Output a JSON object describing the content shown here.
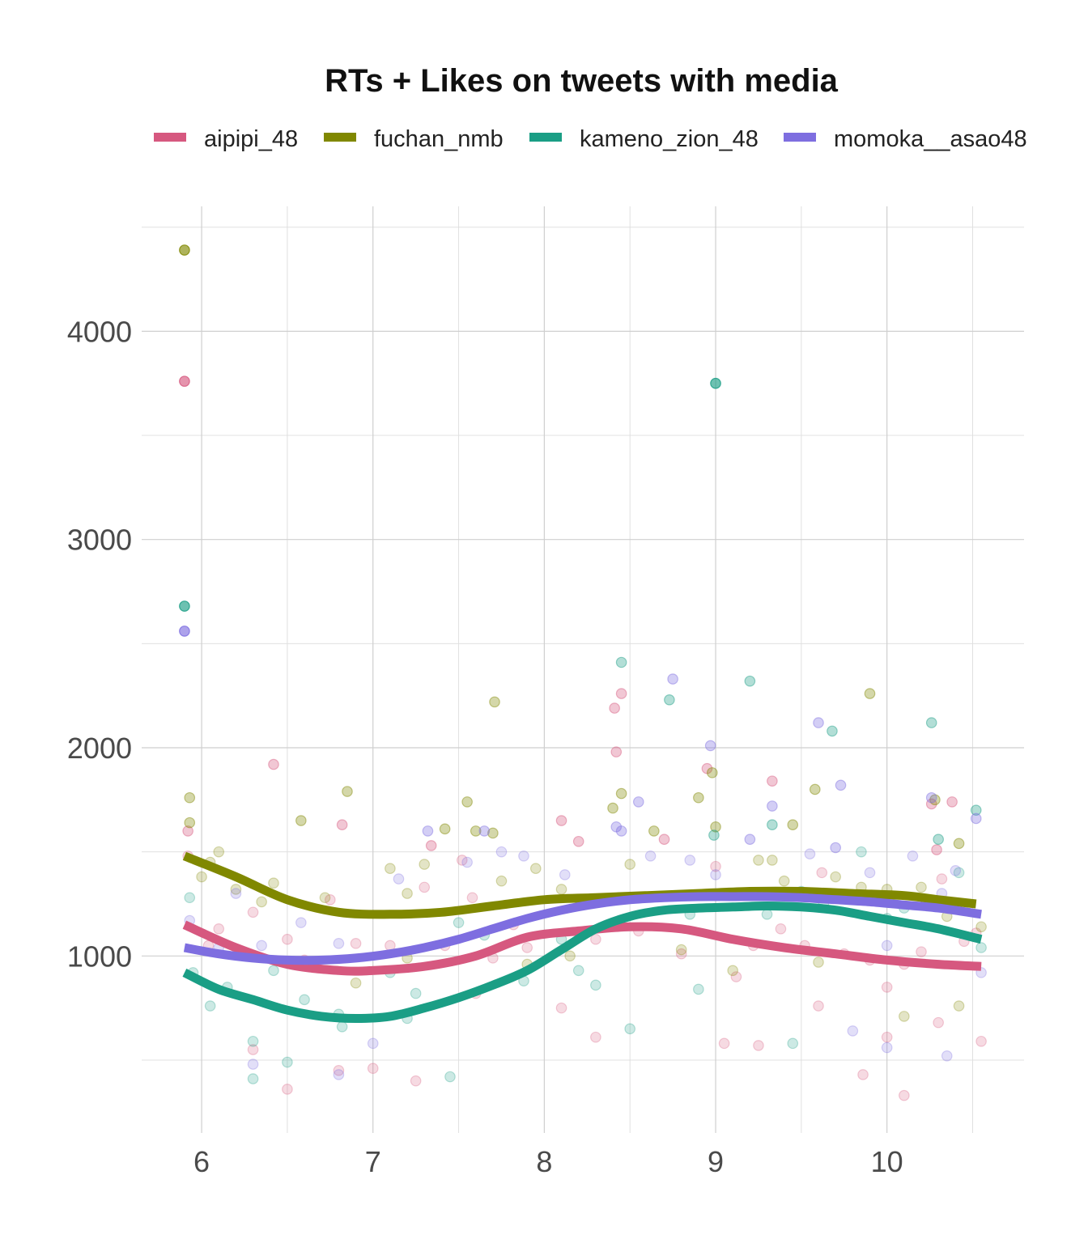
{
  "chart_data": {
    "type": "scatter",
    "title": "RTs + Likes on tweets with media",
    "xlabel": "",
    "ylabel": "",
    "xlim": [
      5.65,
      10.8
    ],
    "ylim": [
      150,
      4600
    ],
    "x_ticks": [
      6,
      7,
      8,
      9,
      10
    ],
    "y_ticks": [
      1000,
      2000,
      3000,
      4000
    ],
    "x_minor": [
      6.5,
      7.5,
      8.5,
      9.5,
      10.5
    ],
    "y_minor": [
      500,
      1500,
      2500,
      3500,
      4500
    ],
    "grid": true,
    "legend_position": "top",
    "colors": {
      "aipipi_48": "#d6587f",
      "fuchan_nmb": "#808800",
      "kameno_zion_48": "#1a9e85",
      "momoka__asao48": "#7e6ee0"
    },
    "series": [
      {
        "name": "aipipi_48",
        "smooth": [
          [
            5.9,
            1150
          ],
          [
            6.2,
            1040
          ],
          [
            6.5,
            960
          ],
          [
            6.8,
            930
          ],
          [
            7.0,
            930
          ],
          [
            7.3,
            950
          ],
          [
            7.6,
            1000
          ],
          [
            7.9,
            1090
          ],
          [
            8.2,
            1120
          ],
          [
            8.5,
            1140
          ],
          [
            8.8,
            1130
          ],
          [
            9.1,
            1080
          ],
          [
            9.4,
            1040
          ],
          [
            9.7,
            1010
          ],
          [
            10.0,
            980
          ],
          [
            10.3,
            960
          ],
          [
            10.55,
            950
          ]
        ],
        "points": [
          [
            5.9,
            3760
          ],
          [
            5.92,
            1600
          ],
          [
            5.92,
            1480
          ],
          [
            6.04,
            1050
          ],
          [
            6.1,
            1130
          ],
          [
            6.22,
            1010
          ],
          [
            6.3,
            1210
          ],
          [
            6.42,
            1920
          ],
          [
            6.5,
            1080
          ],
          [
            6.6,
            980
          ],
          [
            6.75,
            1270
          ],
          [
            6.82,
            1630
          ],
          [
            6.9,
            1060
          ],
          [
            7.1,
            1050
          ],
          [
            7.3,
            1330
          ],
          [
            7.34,
            1530
          ],
          [
            7.42,
            1050
          ],
          [
            7.52,
            1460
          ],
          [
            7.58,
            1280
          ],
          [
            7.7,
            990
          ],
          [
            7.82,
            1150
          ],
          [
            7.9,
            1040
          ],
          [
            8.1,
            1650
          ],
          [
            8.2,
            1550
          ],
          [
            8.3,
            1080
          ],
          [
            8.41,
            2190
          ],
          [
            8.42,
            1980
          ],
          [
            8.45,
            2260
          ],
          [
            8.55,
            1120
          ],
          [
            8.7,
            1560
          ],
          [
            8.8,
            1010
          ],
          [
            8.95,
            1900
          ],
          [
            9.0,
            1430
          ],
          [
            9.12,
            900
          ],
          [
            9.22,
            1050
          ],
          [
            9.33,
            1840
          ],
          [
            9.38,
            1130
          ],
          [
            9.52,
            1050
          ],
          [
            9.62,
            1400
          ],
          [
            9.75,
            1010
          ],
          [
            9.9,
            980
          ],
          [
            10.0,
            850
          ],
          [
            10.1,
            960
          ],
          [
            10.2,
            1020
          ],
          [
            10.26,
            1730
          ],
          [
            10.29,
            1510
          ],
          [
            10.32,
            1370
          ],
          [
            10.38,
            1740
          ],
          [
            10.45,
            1070
          ],
          [
            10.52,
            1110
          ],
          [
            6.3,
            550
          ],
          [
            6.5,
            360
          ],
          [
            6.8,
            450
          ],
          [
            7.0,
            460
          ],
          [
            7.25,
            400
          ],
          [
            7.6,
            820
          ],
          [
            8.1,
            750
          ],
          [
            8.3,
            610
          ],
          [
            9.05,
            580
          ],
          [
            9.25,
            570
          ],
          [
            9.6,
            760
          ],
          [
            9.86,
            430
          ],
          [
            10.0,
            610
          ],
          [
            10.1,
            330
          ],
          [
            10.3,
            680
          ],
          [
            10.55,
            590
          ]
        ]
      },
      {
        "name": "fuchan_nmb",
        "smooth": [
          [
            5.9,
            1480
          ],
          [
            6.2,
            1380
          ],
          [
            6.5,
            1270
          ],
          [
            6.8,
            1210
          ],
          [
            7.1,
            1200
          ],
          [
            7.4,
            1210
          ],
          [
            7.7,
            1240
          ],
          [
            8.0,
            1270
          ],
          [
            8.3,
            1280
          ],
          [
            8.6,
            1290
          ],
          [
            8.9,
            1300
          ],
          [
            9.2,
            1310
          ],
          [
            9.5,
            1310
          ],
          [
            9.8,
            1300
          ],
          [
            10.1,
            1290
          ],
          [
            10.3,
            1270
          ],
          [
            10.52,
            1250
          ]
        ],
        "points": [
          [
            5.9,
            4390
          ],
          [
            5.93,
            1760
          ],
          [
            5.93,
            1640
          ],
          [
            6.0,
            1380
          ],
          [
            6.05,
            1450
          ],
          [
            6.1,
            1500
          ],
          [
            6.2,
            1320
          ],
          [
            6.35,
            1260
          ],
          [
            6.42,
            1350
          ],
          [
            6.58,
            1650
          ],
          [
            6.72,
            1280
          ],
          [
            6.85,
            1790
          ],
          [
            7.1,
            1420
          ],
          [
            7.2,
            1300
          ],
          [
            7.3,
            1440
          ],
          [
            7.42,
            1610
          ],
          [
            7.55,
            1740
          ],
          [
            7.6,
            1600
          ],
          [
            7.7,
            1590
          ],
          [
            7.71,
            2220
          ],
          [
            7.75,
            1360
          ],
          [
            7.95,
            1420
          ],
          [
            8.1,
            1320
          ],
          [
            8.4,
            1710
          ],
          [
            8.45,
            1780
          ],
          [
            8.5,
            1440
          ],
          [
            8.64,
            1600
          ],
          [
            8.9,
            1760
          ],
          [
            8.98,
            1880
          ],
          [
            9.0,
            1620
          ],
          [
            9.25,
            1460
          ],
          [
            9.33,
            1460
          ],
          [
            9.4,
            1360
          ],
          [
            9.45,
            1630
          ],
          [
            9.58,
            1800
          ],
          [
            9.7,
            1380
          ],
          [
            9.85,
            1330
          ],
          [
            9.9,
            2260
          ],
          [
            10.0,
            1320
          ],
          [
            10.2,
            1330
          ],
          [
            10.28,
            1750
          ],
          [
            10.35,
            1190
          ],
          [
            10.42,
            1540
          ],
          [
            10.55,
            1140
          ],
          [
            6.9,
            870
          ],
          [
            7.2,
            990
          ],
          [
            7.9,
            960
          ],
          [
            8.15,
            1000
          ],
          [
            8.8,
            1030
          ],
          [
            9.1,
            930
          ],
          [
            9.6,
            970
          ],
          [
            10.1,
            710
          ],
          [
            10.42,
            760
          ]
        ]
      },
      {
        "name": "kameno_zion_48",
        "smooth": [
          [
            5.9,
            920
          ],
          [
            6.1,
            840
          ],
          [
            6.3,
            790
          ],
          [
            6.5,
            740
          ],
          [
            6.7,
            710
          ],
          [
            6.9,
            700
          ],
          [
            7.1,
            710
          ],
          [
            7.3,
            750
          ],
          [
            7.5,
            800
          ],
          [
            7.7,
            860
          ],
          [
            7.9,
            930
          ],
          [
            8.1,
            1030
          ],
          [
            8.3,
            1130
          ],
          [
            8.5,
            1190
          ],
          [
            8.7,
            1220
          ],
          [
            8.9,
            1230
          ],
          [
            9.1,
            1235
          ],
          [
            9.3,
            1240
          ],
          [
            9.5,
            1235
          ],
          [
            9.7,
            1220
          ],
          [
            9.9,
            1190
          ],
          [
            10.1,
            1160
          ],
          [
            10.3,
            1130
          ],
          [
            10.55,
            1080
          ]
        ],
        "points": [
          [
            5.9,
            2680
          ],
          [
            5.93,
            1280
          ],
          [
            5.95,
            920
          ],
          [
            6.05,
            760
          ],
          [
            6.15,
            850
          ],
          [
            6.3,
            590
          ],
          [
            6.42,
            930
          ],
          [
            6.6,
            790
          ],
          [
            6.82,
            660
          ],
          [
            7.1,
            920
          ],
          [
            7.25,
            820
          ],
          [
            7.5,
            1160
          ],
          [
            7.65,
            1100
          ],
          [
            7.88,
            880
          ],
          [
            8.1,
            1080
          ],
          [
            8.2,
            930
          ],
          [
            8.3,
            860
          ],
          [
            8.45,
            2410
          ],
          [
            8.5,
            1280
          ],
          [
            8.73,
            2230
          ],
          [
            8.85,
            1200
          ],
          [
            8.99,
            1580
          ],
          [
            9.0,
            3750
          ],
          [
            9.2,
            2320
          ],
          [
            9.3,
            1200
          ],
          [
            9.33,
            1630
          ],
          [
            9.5,
            1310
          ],
          [
            9.63,
            1250
          ],
          [
            9.68,
            2080
          ],
          [
            9.85,
            1500
          ],
          [
            10.0,
            1180
          ],
          [
            10.1,
            1230
          ],
          [
            10.26,
            2120
          ],
          [
            10.3,
            1560
          ],
          [
            10.42,
            1400
          ],
          [
            10.52,
            1700
          ],
          [
            10.55,
            1040
          ],
          [
            6.3,
            410
          ],
          [
            6.5,
            490
          ],
          [
            7.45,
            420
          ],
          [
            8.5,
            650
          ],
          [
            9.45,
            580
          ],
          [
            6.8,
            720
          ],
          [
            7.2,
            700
          ],
          [
            8.9,
            840
          ]
        ]
      },
      {
        "name": "momoka__asao48",
        "smooth": [
          [
            5.9,
            1040
          ],
          [
            6.1,
            1010
          ],
          [
            6.3,
            990
          ],
          [
            6.5,
            980
          ],
          [
            6.7,
            980
          ],
          [
            6.9,
            990
          ],
          [
            7.1,
            1010
          ],
          [
            7.3,
            1040
          ],
          [
            7.5,
            1080
          ],
          [
            7.7,
            1130
          ],
          [
            7.9,
            1180
          ],
          [
            8.1,
            1220
          ],
          [
            8.3,
            1250
          ],
          [
            8.5,
            1270
          ],
          [
            8.7,
            1280
          ],
          [
            8.9,
            1285
          ],
          [
            9.1,
            1285
          ],
          [
            9.3,
            1285
          ],
          [
            9.5,
            1280
          ],
          [
            9.7,
            1270
          ],
          [
            9.9,
            1260
          ],
          [
            10.1,
            1245
          ],
          [
            10.3,
            1230
          ],
          [
            10.55,
            1200
          ]
        ],
        "points": [
          [
            5.9,
            2560
          ],
          [
            5.93,
            1170
          ],
          [
            6.1,
            1040
          ],
          [
            6.2,
            1300
          ],
          [
            6.35,
            1050
          ],
          [
            6.58,
            1160
          ],
          [
            6.8,
            1060
          ],
          [
            7.15,
            1370
          ],
          [
            7.32,
            1600
          ],
          [
            7.55,
            1450
          ],
          [
            7.65,
            1600
          ],
          [
            7.75,
            1500
          ],
          [
            7.88,
            1480
          ],
          [
            8.12,
            1390
          ],
          [
            8.42,
            1620
          ],
          [
            8.45,
            1600
          ],
          [
            8.55,
            1740
          ],
          [
            8.62,
            1480
          ],
          [
            8.75,
            2330
          ],
          [
            8.85,
            1460
          ],
          [
            8.97,
            2010
          ],
          [
            9.0,
            1390
          ],
          [
            9.2,
            1560
          ],
          [
            9.33,
            1720
          ],
          [
            9.55,
            1490
          ],
          [
            9.6,
            2120
          ],
          [
            9.7,
            1520
          ],
          [
            9.73,
            1820
          ],
          [
            9.9,
            1400
          ],
          [
            10.0,
            1050
          ],
          [
            10.15,
            1480
          ],
          [
            10.26,
            1760
          ],
          [
            10.32,
            1300
          ],
          [
            10.4,
            1410
          ],
          [
            10.52,
            1660
          ],
          [
            6.3,
            480
          ],
          [
            6.8,
            430
          ],
          [
            9.8,
            640
          ],
          [
            10.0,
            560
          ],
          [
            10.35,
            520
          ],
          [
            10.55,
            920
          ],
          [
            7.0,
            580
          ]
        ]
      }
    ]
  }
}
